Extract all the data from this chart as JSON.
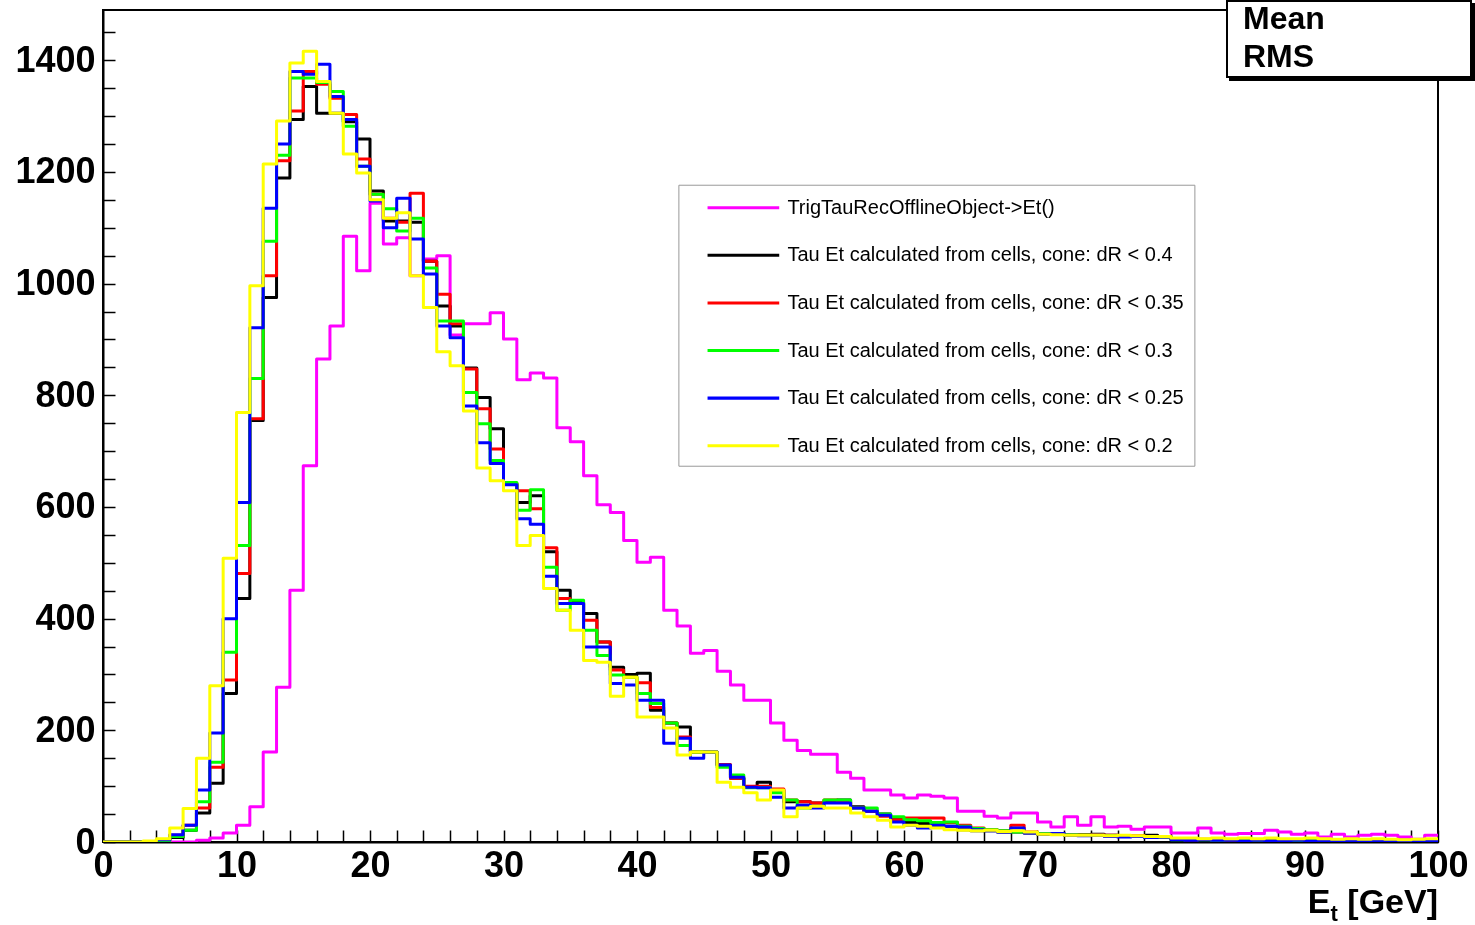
{
  "chart_data": {
    "type": "histogram",
    "xlabel": "E$_{t}$ [GeV]",
    "annotations": [
      "Mean",
      "RMS"
    ],
    "legend": "top right",
    "bins": [
      0,
      1,
      2,
      3,
      4,
      5,
      6,
      7,
      8,
      9,
      10,
      11,
      12,
      13,
      14,
      15,
      16,
      17,
      18,
      19,
      20,
      21,
      22,
      23,
      24,
      25,
      26,
      27,
      28,
      29,
      30,
      31,
      32,
      33,
      34,
      35,
      36,
      37,
      38,
      39,
      40,
      41,
      42,
      43,
      44,
      45,
      46,
      47,
      48,
      49,
      50,
      51,
      52,
      53,
      54,
      55,
      56,
      57,
      58,
      59,
      60,
      61,
      62,
      63,
      64,
      65,
      66,
      67,
      68,
      69,
      70,
      71,
      72,
      73,
      74,
      75,
      76,
      77,
      78,
      79,
      80,
      81,
      82,
      83,
      84,
      85,
      86,
      87,
      88,
      89,
      90,
      91,
      92,
      93,
      94,
      95,
      96,
      97,
      98,
      99,
      100
    ],
    "xlim": [
      0,
      100
    ],
    "ylim": [
      0,
      1490
    ],
    "xticks": [
      0,
      {
        "value": 2,
        "label": null
      },
      {
        "value": 4,
        "label": null
      },
      {
        "value": 6,
        "label": null
      },
      {
        "value": 8,
        "label": null
      },
      10,
      {
        "value": 12,
        "label": null
      },
      {
        "value": 14,
        "label": null
      },
      {
        "value": 16,
        "label": null
      },
      {
        "value": 18,
        "label": null
      },
      20,
      {
        "value": 22,
        "label": null
      },
      {
        "value": 24,
        "label": null
      },
      {
        "value": 26,
        "label": null
      },
      {
        "value": 28,
        "label": null
      },
      30,
      {
        "value": 32,
        "label": null
      },
      {
        "value": 34,
        "label": null
      },
      {
        "value": 36,
        "label": null
      },
      {
        "value": 38,
        "label": null
      },
      40,
      {
        "value": 42,
        "label": null
      },
      {
        "value": 44,
        "label": null
      },
      {
        "value": 46,
        "label": null
      },
      {
        "value": 48,
        "label": null
      },
      50,
      {
        "value": 52,
        "label": null
      },
      {
        "value": 54,
        "label": null
      },
      {
        "value": 56,
        "label": null
      },
      {
        "value": 58,
        "label": null
      },
      60,
      {
        "value": 62,
        "label": null
      },
      {
        "value": 64,
        "label": null
      },
      {
        "value": 66,
        "label": null
      },
      {
        "value": 68,
        "label": null
      },
      70,
      {
        "value": 72,
        "label": null
      },
      {
        "value": 74,
        "label": null
      },
      {
        "value": 76,
        "label": null
      },
      {
        "value": 78,
        "label": null
      },
      80,
      {
        "value": 82,
        "label": null
      },
      {
        "value": 84,
        "label": null
      },
      {
        "value": 86,
        "label": null
      },
      {
        "value": 88,
        "label": null
      },
      90,
      {
        "value": 92,
        "label": null
      },
      {
        "value": 94,
        "label": null
      },
      {
        "value": 96,
        "label": null
      },
      {
        "value": 98,
        "label": null
      },
      100
    ],
    "yticks": [
      0,
      {
        "value": 50,
        "label": null
      },
      {
        "value": 100,
        "label": null
      },
      {
        "value": 150,
        "label": null
      },
      200,
      {
        "value": 250,
        "label": null
      },
      {
        "value": 300,
        "label": null
      },
      {
        "value": 350,
        "label": null
      },
      400,
      {
        "value": 450,
        "label": null
      },
      {
        "value": 500,
        "label": null
      },
      {
        "value": 550,
        "label": null
      },
      600,
      {
        "value": 650,
        "label": null
      },
      {
        "value": 700,
        "label": null
      },
      {
        "value": 750,
        "label": null
      },
      800,
      {
        "value": 850,
        "label": null
      },
      {
        "value": 900,
        "label": null
      },
      {
        "value": 950,
        "label": null
      },
      1000,
      {
        "value": 1050,
        "label": null
      },
      {
        "value": 1100,
        "label": null
      },
      {
        "value": 1150,
        "label": null
      },
      1200,
      {
        "value": 1250,
        "label": null
      },
      {
        "value": 1300,
        "label": null
      },
      {
        "value": 1350,
        "label": null
      },
      1400,
      {
        "value": 1450,
        "label": null
      }
    ],
    "series": [
      {
        "name": "TrigTauRecOfflineObject->Et()",
        "color": "#ff00ff",
        "values": [
          0,
          0,
          0,
          0,
          0,
          0,
          0,
          3,
          7,
          16,
          30,
          63,
          161,
          277,
          451,
          674,
          865,
          924,
          1085,
          1023,
          1144,
          1071,
          1082,
          1014,
          1044,
          1050,
          908,
          928,
          928,
          948,
          901,
          828,
          840,
          831,
          742,
          717,
          656,
          604,
          590,
          540,
          501,
          510,
          415,
          387,
          338,
          343,
          306,
          281,
          254,
          254,
          213,
          182,
          164,
          157,
          157,
          125,
          114,
          93,
          93,
          84,
          79,
          84,
          82,
          79,
          55,
          55,
          46,
          43,
          52,
          52,
          36,
          27,
          45,
          30,
          45,
          27,
          28,
          23,
          27,
          27,
          16,
          16,
          25,
          16,
          14,
          15,
          15,
          21,
          18,
          14,
          16,
          9,
          14,
          9,
          12,
          14,
          12,
          9,
          5,
          12
        ]
      },
      {
        "name": "Tau Et calculated from cells, cone: dR < 0.4",
        "color": "#000000",
        "values": [
          0,
          0,
          0,
          0,
          3,
          8,
          21,
          52,
          105,
          266,
          436,
          755,
          975,
          1189,
          1294,
          1353,
          1305,
          1305,
          1290,
          1259,
          1166,
          1112,
          1112,
          1110,
          1040,
          960,
          924,
          849,
          796,
          740,
          642,
          608,
          620,
          520,
          451,
          429,
          409,
          358,
          313,
          300,
          302,
          236,
          213,
          206,
          161,
          161,
          138,
          114,
          98,
          107,
          93,
          72,
          72,
          70,
          72,
          75,
          63,
          55,
          50,
          43,
          35,
          33,
          30,
          28,
          22,
          20,
          20,
          18,
          18,
          16,
          14,
          15,
          12,
          13,
          14,
          12,
          11,
          10,
          12,
          10,
          5,
          6,
          4,
          5,
          4,
          3,
          4,
          3,
          3,
          4,
          3,
          2,
          3,
          2,
          3,
          2,
          2,
          3,
          2,
          2
        ]
      },
      {
        "name": "Tau Et calculated from cells, cone: dR < 0.35",
        "color": "#ff0000",
        "values": [
          0,
          0,
          0,
          0,
          3,
          12,
          30,
          61,
          134,
          290,
          481,
          758,
          1014,
          1220,
          1309,
          1380,
          1357,
          1332,
          1303,
          1223,
          1160,
          1117,
          1110,
          1162,
          1040,
          981,
          928,
          847,
          776,
          704,
          642,
          629,
          597,
          527,
          436,
          427,
          397,
          358,
          308,
          295,
          285,
          241,
          213,
          188,
          161,
          161,
          139,
          114,
          100,
          100,
          95,
          75,
          72,
          70,
          75,
          72,
          61,
          55,
          46,
          40,
          43,
          43,
          43,
          35,
          30,
          25,
          22,
          20,
          30,
          18,
          15,
          14,
          13,
          12,
          13,
          12,
          10,
          11,
          10,
          9,
          5,
          4,
          5,
          4,
          3,
          4,
          3,
          3,
          4,
          3,
          2,
          3,
          3,
          2,
          2,
          3,
          2,
          2,
          2,
          1
        ]
      },
      {
        "name": "Tau Et calculated from cells, cone: dR < 0.3",
        "color": "#00ff00",
        "values": [
          0,
          0,
          0,
          0,
          2,
          10,
          21,
          72,
          143,
          340,
          531,
          830,
          1076,
          1230,
          1368,
          1368,
          1360,
          1344,
          1282,
          1210,
          1160,
          1134,
          1094,
          1117,
          1028,
          933,
          933,
          805,
          749,
          683,
          644,
          594,
          631,
          492,
          415,
          433,
          379,
          334,
          299,
          295,
          266,
          248,
          213,
          173,
          161,
          161,
          134,
          120,
          97,
          97,
          88,
          75,
          61,
          63,
          75,
          75,
          61,
          61,
          50,
          45,
          40,
          38,
          35,
          36,
          28,
          24,
          22,
          20,
          18,
          17,
          15,
          14,
          13,
          12,
          12,
          11,
          10,
          10,
          9,
          9,
          4,
          5,
          4,
          3,
          4,
          3,
          3,
          2,
          3,
          2,
          3,
          2,
          2,
          3,
          2,
          2,
          1,
          2,
          2,
          1
        ]
      },
      {
        "name": "Tau Et calculated from cells, cone: dR < 0.25",
        "color": "#0000ff",
        "values": [
          0,
          0,
          0,
          0,
          4,
          13,
          30,
          93,
          195,
          400,
          608,
          921,
          1135,
          1250,
          1380,
          1375,
          1393,
          1335,
          1294,
          1210,
          1148,
          1100,
          1153,
          1080,
          1017,
          924,
          903,
          781,
          715,
          678,
          640,
          579,
          569,
          476,
          427,
          427,
          349,
          349,
          284,
          281,
          254,
          254,
          177,
          186,
          150,
          161,
          138,
          116,
          98,
          97,
          80,
          61,
          66,
          61,
          70,
          70,
          61,
          55,
          48,
          36,
          30,
          25,
          30,
          28,
          27,
          22,
          20,
          18,
          25,
          16,
          14,
          15,
          12,
          11,
          12,
          10,
          9,
          10,
          8,
          9,
          4,
          3,
          4,
          3,
          3,
          2,
          3,
          2,
          2,
          3,
          2,
          2,
          1,
          2,
          2,
          1,
          2,
          1,
          1,
          1
        ]
      },
      {
        "name": "Tau Et calculated from cells, cone: dR < 0.2",
        "color": "#ffff00",
        "values": [
          0,
          0,
          0,
          2,
          6,
          25,
          60,
          150,
          280,
          508,
          769,
          996,
          1214,
          1291,
          1395,
          1416,
          1362,
          1305,
          1232,
          1198,
          1150,
          1117,
          1127,
          1014,
          957,
          878,
          853,
          772,
          670,
          647,
          629,
          531,
          549,
          454,
          415,
          379,
          325,
          322,
          261,
          295,
          224,
          224,
          204,
          156,
          161,
          161,
          107,
          98,
          88,
          75,
          93,
          45,
          61,
          64,
          61,
          61,
          52,
          45,
          39,
          27,
          30,
          28,
          25,
          22,
          21,
          20,
          21,
          19,
          20,
          18,
          14,
          13,
          12,
          12,
          12,
          11,
          12,
          11,
          10,
          10,
          7,
          7,
          6,
          7,
          6,
          7,
          6,
          7,
          6,
          6,
          7,
          6,
          5,
          6,
          5,
          6,
          5,
          4,
          5,
          6
        ]
      }
    ]
  }
}
